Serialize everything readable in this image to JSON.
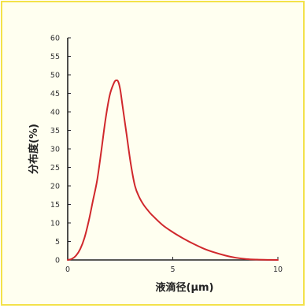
{
  "chart_data": {
    "type": "line",
    "xlabel": "液滴径(μm)",
    "ylabel": "分布度(%)",
    "xlim": [
      0,
      10
    ],
    "ylim": [
      0,
      60
    ],
    "x_ticks": [
      "0",
      "5",
      "10"
    ],
    "y_ticks": [
      "0",
      "5",
      "10",
      "15",
      "20",
      "25",
      "30",
      "35",
      "40",
      "45",
      "50",
      "55",
      "60"
    ],
    "grid": false,
    "series": [
      {
        "color": "#d0282c",
        "x": [
          0,
          0.2,
          0.4,
          0.6,
          0.8,
          1.0,
          1.2,
          1.4,
          1.6,
          1.8,
          2.0,
          2.2,
          2.3,
          2.4,
          2.5,
          2.6,
          2.8,
          3.0,
          3.2,
          3.4,
          3.6,
          3.8,
          4.0,
          4.5,
          5.0,
          5.5,
          6.0,
          6.5,
          7.0,
          7.5,
          8.0,
          8.5,
          9.0,
          9.5,
          10.0
        ],
        "y": [
          0,
          0.3,
          1.2,
          3.0,
          6.0,
          10.5,
          16.0,
          21.5,
          29.5,
          38.0,
          44.5,
          47.8,
          48.5,
          48.2,
          46.0,
          42.0,
          34.0,
          26.0,
          20.0,
          17.0,
          15.0,
          13.5,
          12.2,
          9.5,
          7.5,
          5.8,
          4.3,
          3.0,
          2.0,
          1.2,
          0.6,
          0.25,
          0.1,
          0.03,
          0
        ]
      }
    ]
  },
  "colors": {
    "panel_border": "#f3e24a",
    "panel_background": "#fffff0",
    "axis": "#222222"
  }
}
